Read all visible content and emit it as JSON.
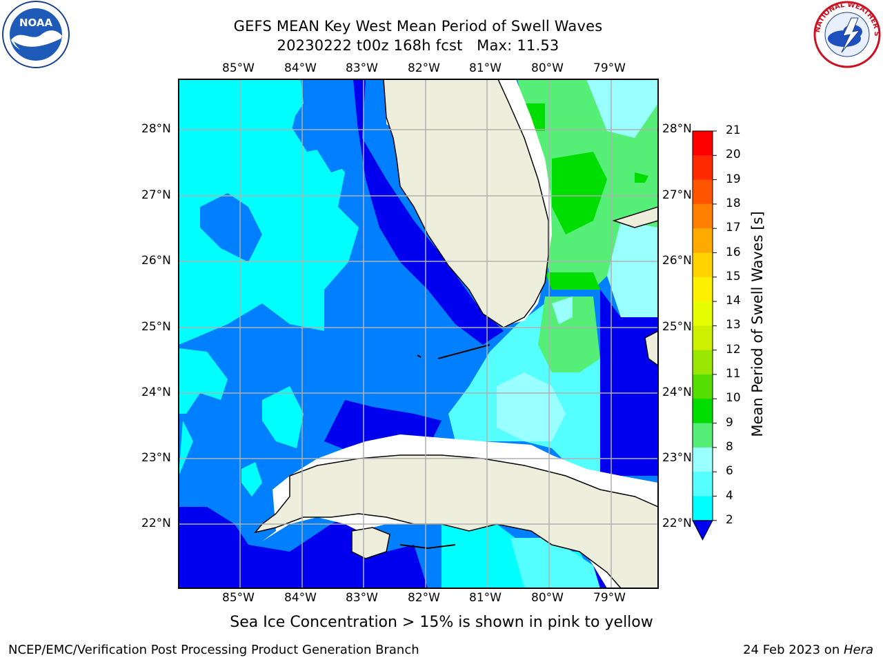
{
  "title": {
    "line1": "GEFS MEAN Key West Mean Period of Swell Waves",
    "line2": "20230222 t00z 168h fcst   Max: 11.53"
  },
  "logos": {
    "left": "noaa-logo",
    "right": "nws-logo",
    "left_text": "NOAA",
    "right_text": "NATIONAL WEATHER SERVICE"
  },
  "axes": {
    "lon_labels": [
      "85°W",
      "84°W",
      "83°W",
      "82°W",
      "81°W",
      "80°W",
      "79°W"
    ],
    "lat_labels": [
      "28°N",
      "27°N",
      "26°N",
      "25°N",
      "24°N",
      "23°N",
      "22°N"
    ]
  },
  "colorbar": {
    "label": "Mean Period of Swell Waves [s]",
    "ticks": [
      "21",
      "20",
      "19",
      "18",
      "17",
      "16",
      "15",
      "14",
      "13",
      "12",
      "11",
      "10",
      "9",
      "8",
      "6",
      "4",
      "2"
    ],
    "colors": [
      "#ff0000",
      "#ff2a00",
      "#ff5500",
      "#ff8000",
      "#ffaa00",
      "#ffd200",
      "#fff000",
      "#e6ff00",
      "#ccf000",
      "#99e600",
      "#55dd00",
      "#00dd00",
      "#55ee77",
      "#99ffff",
      "#55ffff",
      "#00ffff",
      "#0080ff"
    ],
    "under_color": "#0000ee"
  },
  "chart_data": {
    "type": "heatmap",
    "title": "GEFS MEAN Key West Mean Period of Swell Waves",
    "subtitle": "20230222 t00z 168h fcst   Max: 11.53",
    "variable": "Mean Period of Swell Waves [s]",
    "max_value": 11.53,
    "levels": [
      2,
      4,
      6,
      8,
      9,
      10,
      11,
      12,
      13,
      14,
      15,
      16,
      17,
      18,
      19,
      20,
      21
    ],
    "x_range": [
      "86°W",
      "78.3°W"
    ],
    "y_range": [
      "21°N",
      "28.8°N"
    ],
    "xlabel": "",
    "ylabel": ""
  },
  "footer": {
    "note": "Sea Ice Concentration > 15% is shown in pink to yellow",
    "left": "NCEP/EMC/Verification Post Processing Product Generation Branch",
    "right_prefix": "24 Feb 2023 on ",
    "right_host": "Hera"
  }
}
